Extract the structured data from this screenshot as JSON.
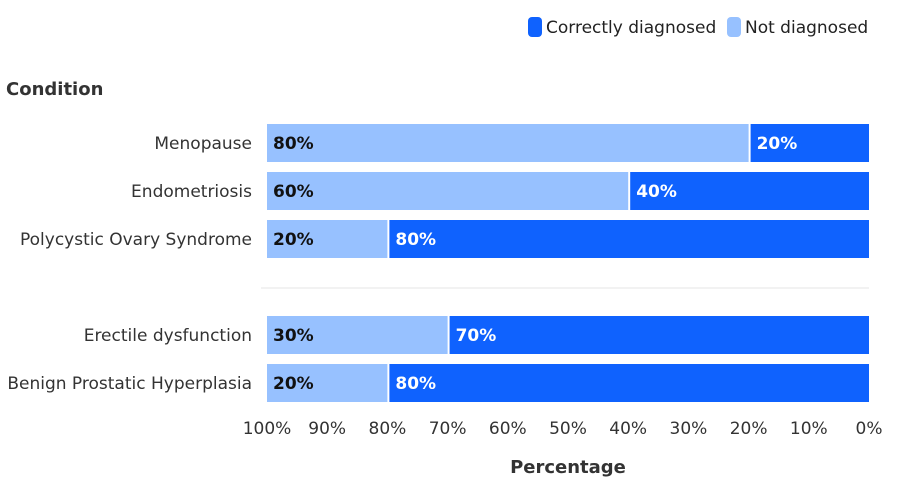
{
  "chart_data": {
    "type": "bar",
    "orientation": "horizontal",
    "stacked": true,
    "y_axis_title": "Condition",
    "xlabel": "Percentage",
    "x_reversed": true,
    "xlim": [
      0,
      100
    ],
    "x_ticks": [
      "100%",
      "90%",
      "80%",
      "70%",
      "60%",
      "50%",
      "40%",
      "30%",
      "20%",
      "10%",
      "0%"
    ],
    "legend_position": "top-right",
    "grid": false,
    "groups": [
      {
        "categories": [
          "Menopause",
          "Endometriosis",
          "Polycystic Ovary Syndrome"
        ],
        "not_diagnosed": [
          80,
          60,
          20
        ],
        "correctly_diagnosed": [
          20,
          40,
          80
        ]
      },
      {
        "categories": [
          "Erectile dysfunction",
          "Benign Prostatic Hyperplasia"
        ],
        "not_diagnosed": [
          30,
          20
        ],
        "correctly_diagnosed": [
          70,
          80
        ]
      }
    ],
    "series": [
      {
        "key": "correctly_diagnosed",
        "name": "Correctly diagnosed",
        "color": "#0f62fe"
      },
      {
        "key": "not_diagnosed",
        "name": "Not diagnosed",
        "color": "#97c1ff"
      }
    ]
  }
}
